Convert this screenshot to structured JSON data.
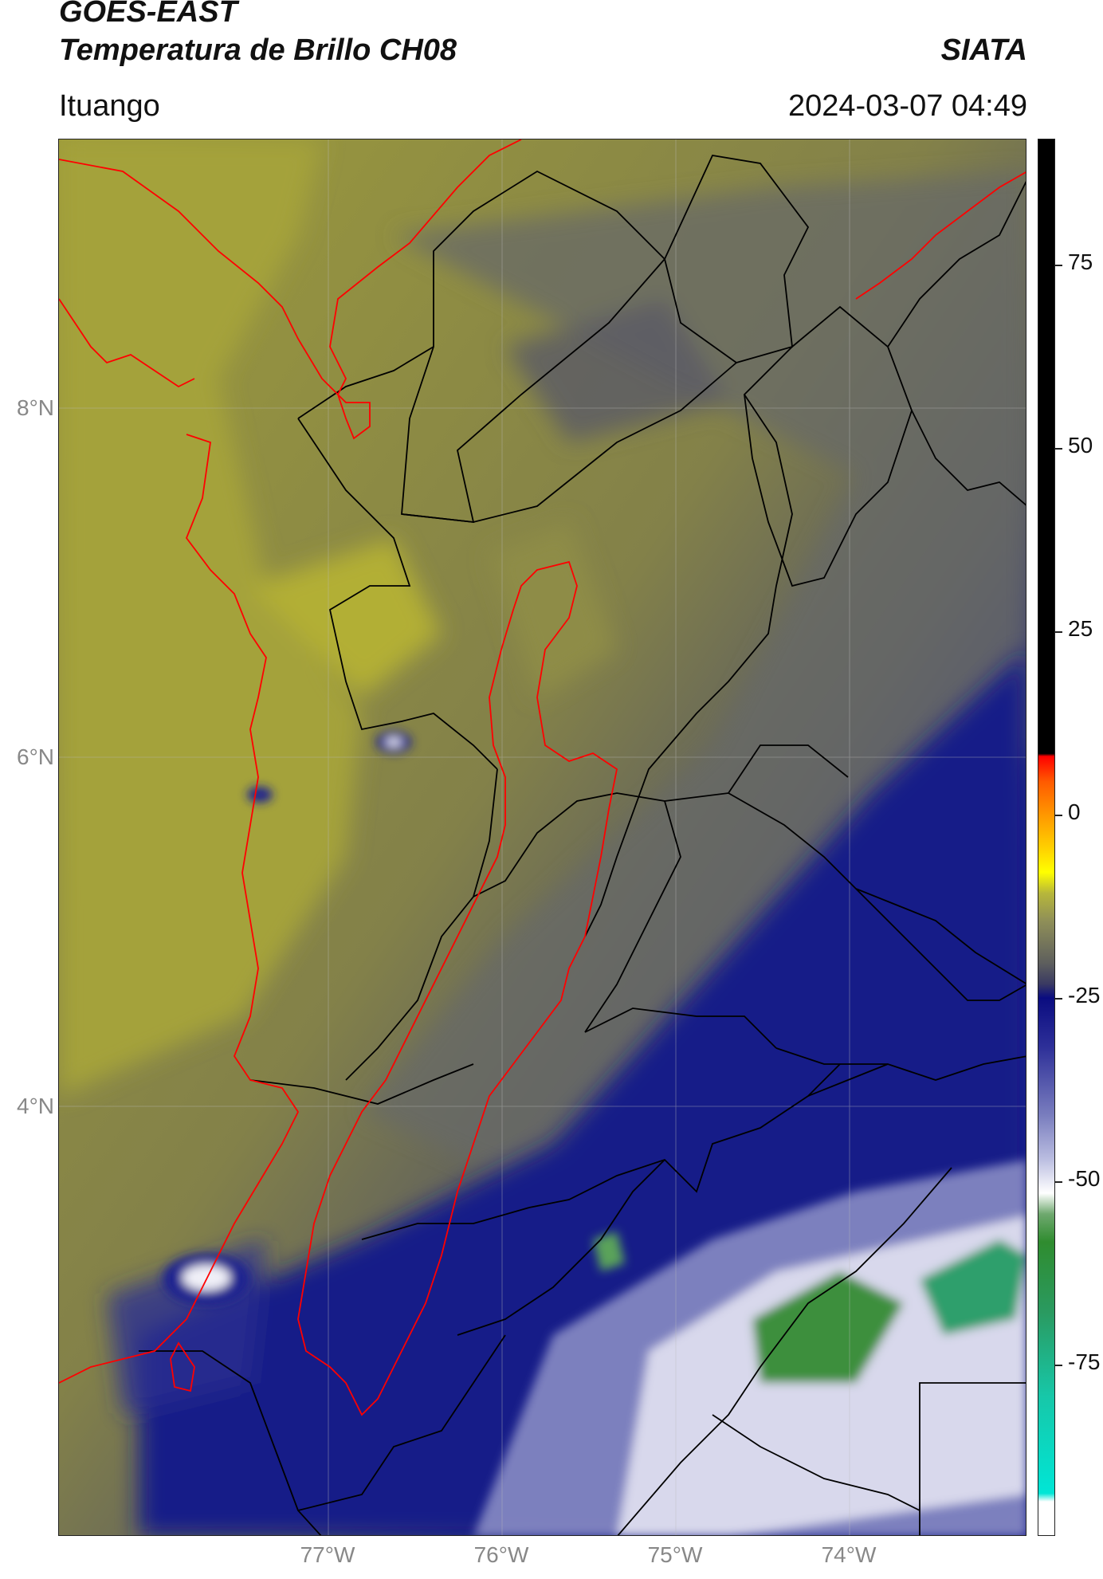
{
  "header": {
    "satellite": "GOES-EAST",
    "product": "Temperatura de Brillo CH08",
    "organization": "SIATA",
    "location": "Ituango",
    "timestamp": "2024-03-07 04:49"
  },
  "map": {
    "lat_labels": [
      "8°N",
      "6°N",
      "4°N"
    ],
    "lon_labels": [
      "77°W",
      "76°W",
      "75°W",
      "74°W"
    ]
  },
  "colorbar": {
    "labels": [
      "75",
      "50",
      "25",
      "0",
      "-25",
      "-50",
      "-75"
    ]
  },
  "colors": {
    "warm_olive": "#a8a63a",
    "mid_olive": "#7f7d4c",
    "dark_gray": "#5b5c5e",
    "cold_navy": "#151a86",
    "very_cold_white": "#f0f0f8",
    "coldest_green": "#3b8f3b",
    "outline_red": "#ff0000",
    "border_black": "#000000"
  }
}
